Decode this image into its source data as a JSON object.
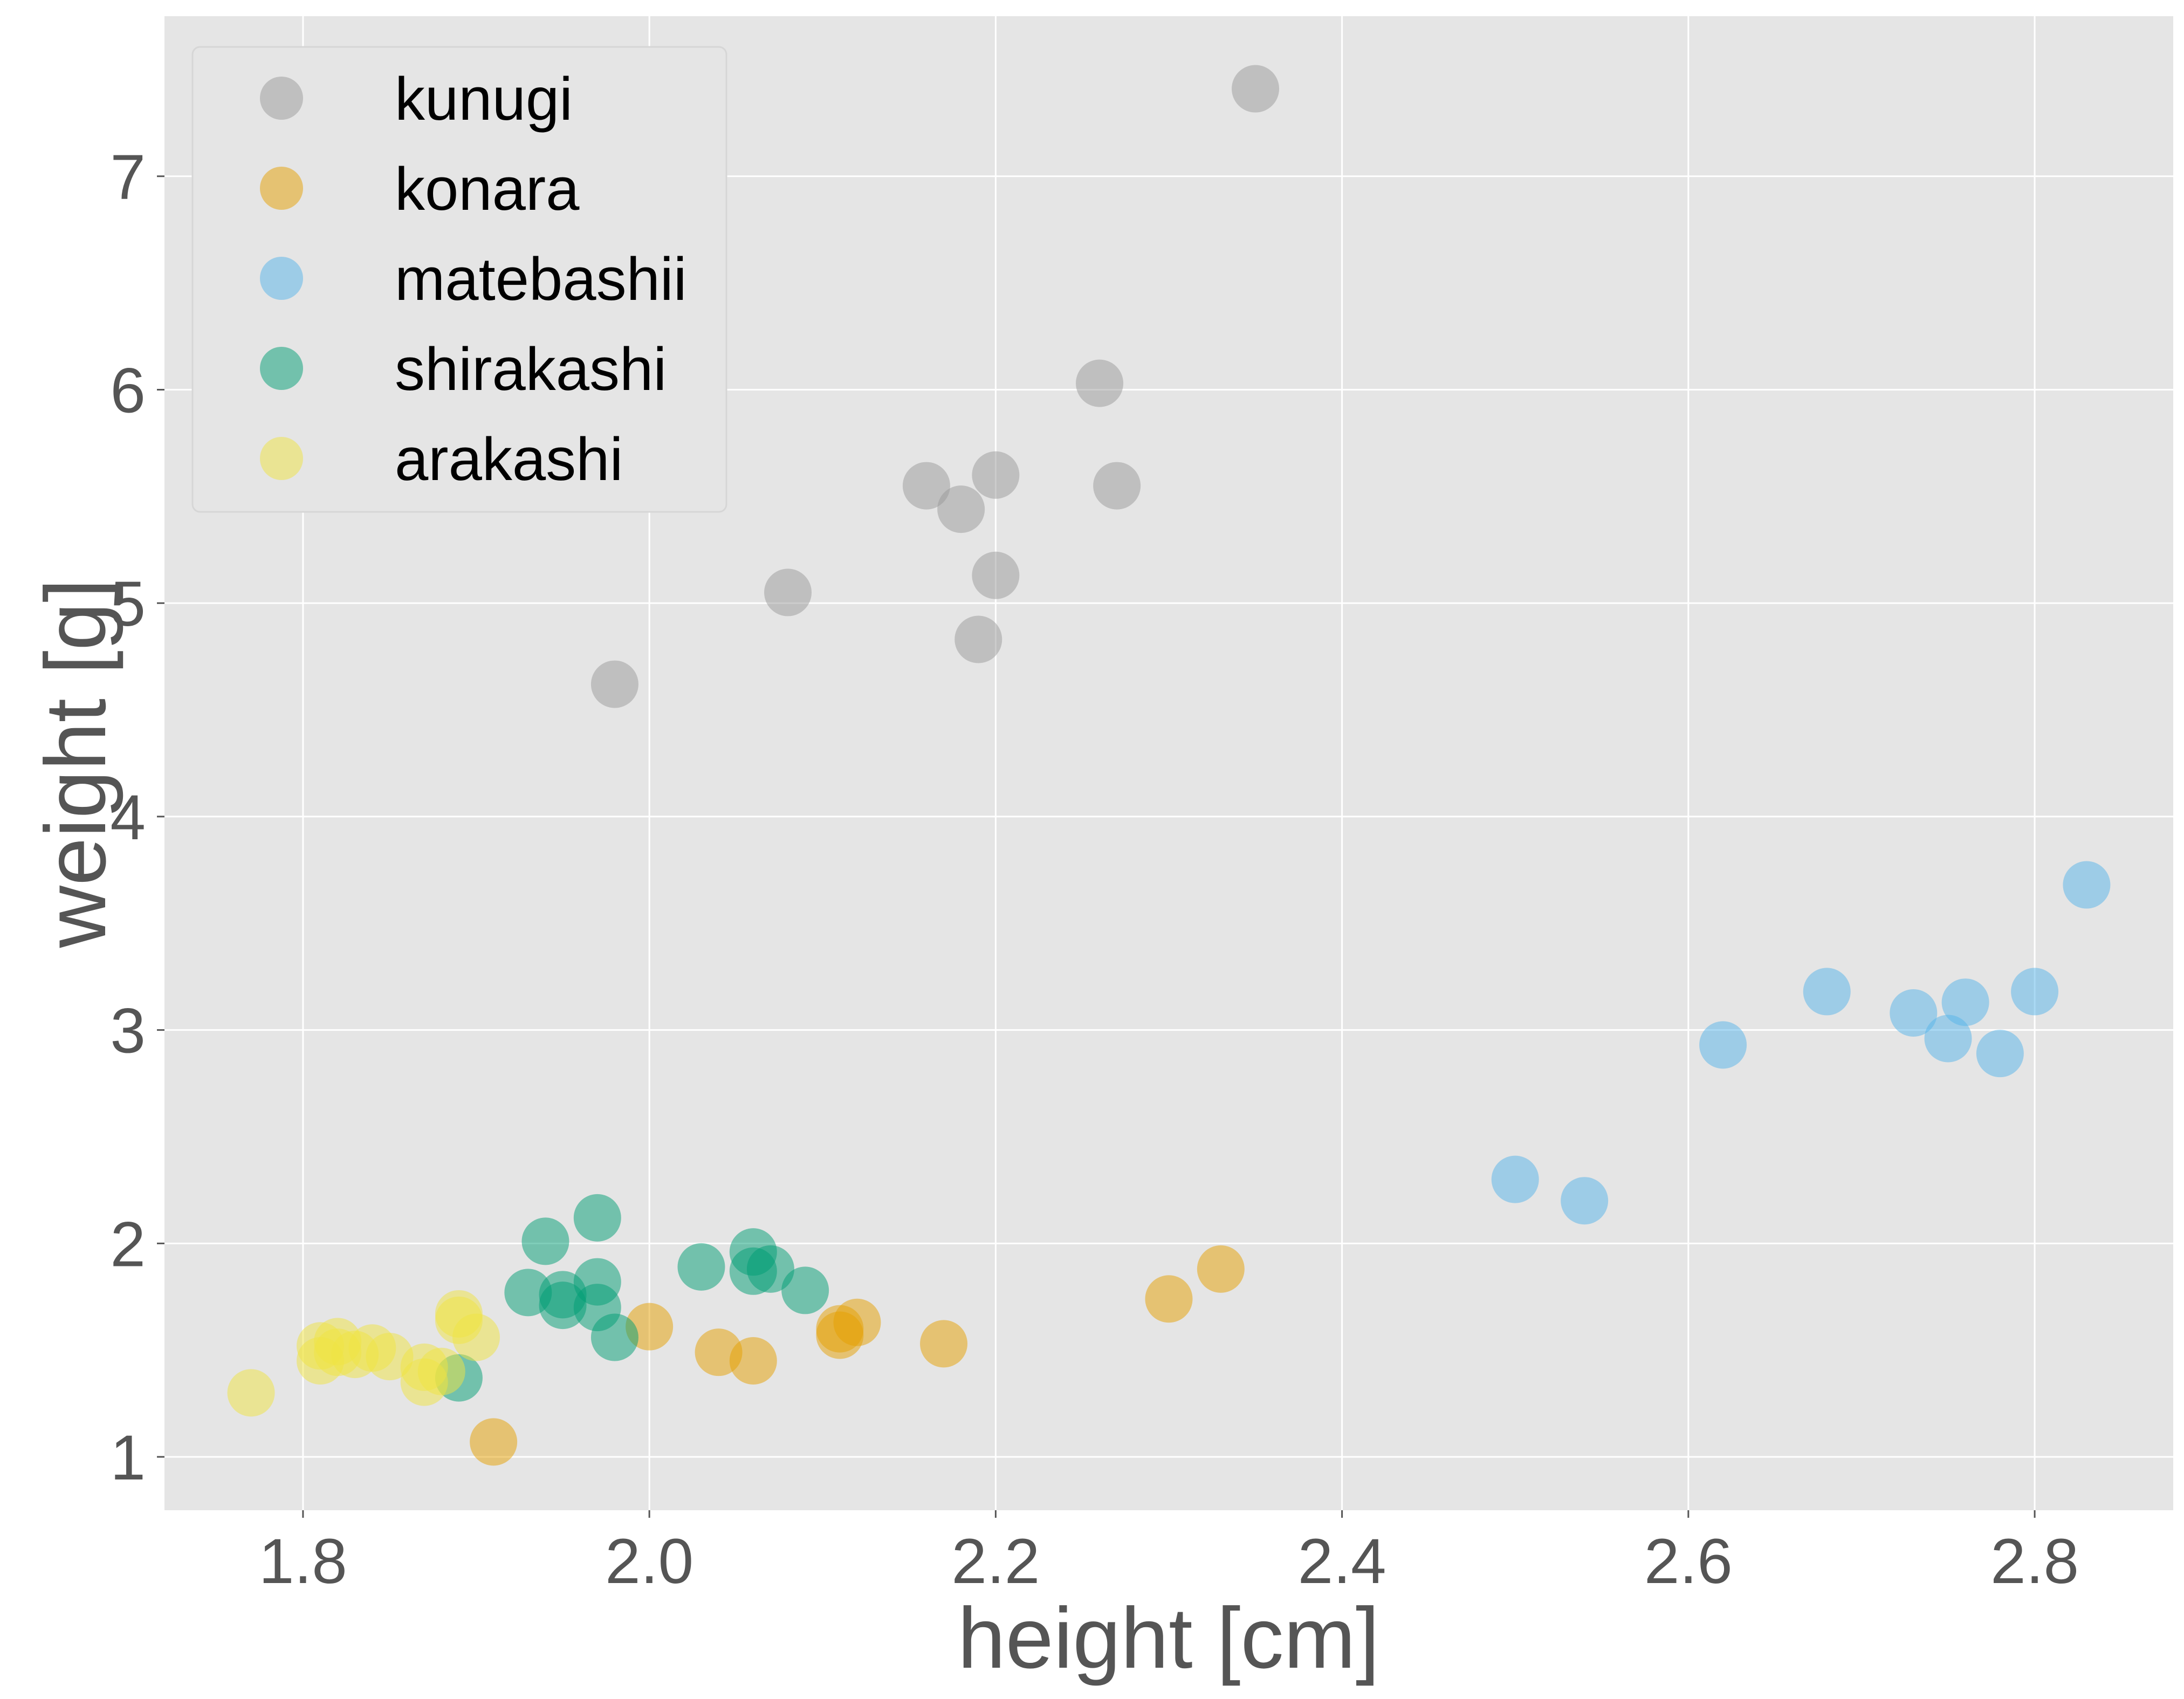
{
  "chart_data": {
    "type": "scatter",
    "xlabel": "height [cm]",
    "ylabel": "weight [g]",
    "xlim": [
      1.72,
      2.88
    ],
    "ylim": [
      0.75,
      7.75
    ],
    "x_ticks": [
      {
        "value": 1.8,
        "label": "1.8"
      },
      {
        "value": 2.0,
        "label": "2.0"
      },
      {
        "value": 2.2,
        "label": "2.2"
      },
      {
        "value": 2.4,
        "label": "2.4"
      },
      {
        "value": 2.6,
        "label": "2.6"
      },
      {
        "value": 2.8,
        "label": "2.8"
      }
    ],
    "y_ticks": [
      {
        "value": 1,
        "label": "1"
      },
      {
        "value": 2,
        "label": "2"
      },
      {
        "value": 3,
        "label": "3"
      },
      {
        "value": 4,
        "label": "4"
      },
      {
        "value": 5,
        "label": "5"
      },
      {
        "value": 6,
        "label": "6"
      },
      {
        "value": 7,
        "label": "7"
      }
    ],
    "grid": true,
    "legend_position": "top-left",
    "series": [
      {
        "name": "kunugi",
        "color": "#999999",
        "points": [
          [
            2.35,
            7.41
          ],
          [
            2.26,
            6.03
          ],
          [
            2.16,
            5.55
          ],
          [
            2.2,
            5.6
          ],
          [
            2.18,
            5.44
          ],
          [
            2.27,
            5.55
          ],
          [
            2.2,
            5.13
          ],
          [
            2.08,
            5.05
          ],
          [
            2.19,
            4.83
          ],
          [
            1.98,
            4.62
          ]
        ]
      },
      {
        "name": "konara",
        "color": "#E69F00",
        "points": [
          [
            2.33,
            1.88
          ],
          [
            2.3,
            1.74
          ],
          [
            2.17,
            1.53
          ],
          [
            2.12,
            1.63
          ],
          [
            2.11,
            1.6
          ],
          [
            2.11,
            1.57
          ],
          [
            2.0,
            1.61
          ],
          [
            2.04,
            1.49
          ],
          [
            2.06,
            1.45
          ],
          [
            1.91,
            1.07
          ]
        ]
      },
      {
        "name": "matebashii",
        "color": "#56B4E9",
        "points": [
          [
            2.83,
            3.68
          ],
          [
            2.8,
            3.18
          ],
          [
            2.76,
            3.13
          ],
          [
            2.73,
            3.08
          ],
          [
            2.68,
            3.18
          ],
          [
            2.75,
            2.96
          ],
          [
            2.78,
            2.89
          ],
          [
            2.62,
            2.93
          ],
          [
            2.5,
            2.3
          ],
          [
            2.54,
            2.2
          ]
        ]
      },
      {
        "name": "shirakashi",
        "color": "#009E73",
        "points": [
          [
            1.97,
            2.12
          ],
          [
            1.94,
            2.01
          ],
          [
            2.06,
            1.96
          ],
          [
            2.03,
            1.89
          ],
          [
            2.07,
            1.88
          ],
          [
            2.06,
            1.87
          ],
          [
            1.97,
            1.82
          ],
          [
            2.09,
            1.78
          ],
          [
            1.93,
            1.77
          ],
          [
            1.95,
            1.76
          ],
          [
            1.95,
            1.71
          ],
          [
            1.97,
            1.7
          ],
          [
            1.98,
            1.56
          ],
          [
            1.89,
            1.37
          ]
        ]
      },
      {
        "name": "arakashi",
        "color": "#F0E442",
        "points": [
          [
            1.89,
            1.67
          ],
          [
            1.89,
            1.64
          ],
          [
            1.9,
            1.56
          ],
          [
            1.82,
            1.54
          ],
          [
            1.81,
            1.52
          ],
          [
            1.84,
            1.51
          ],
          [
            1.82,
            1.49
          ],
          [
            1.83,
            1.48
          ],
          [
            1.85,
            1.47
          ],
          [
            1.81,
            1.45
          ],
          [
            1.87,
            1.42
          ],
          [
            1.88,
            1.4
          ],
          [
            1.87,
            1.35
          ],
          [
            1.77,
            1.3
          ]
        ]
      }
    ]
  }
}
